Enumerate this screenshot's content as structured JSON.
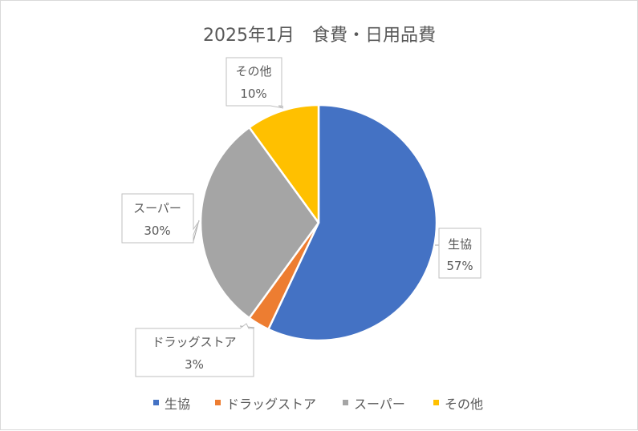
{
  "chart_data": {
    "type": "pie",
    "title": "2025年1月　食費・日用品費",
    "categories": [
      "生協",
      "ドラッグストア",
      "スーパー",
      "その他"
    ],
    "values": [
      57,
      3,
      30,
      10
    ],
    "percent_labels": [
      "57%",
      "3%",
      "30%",
      "10%"
    ],
    "colors": [
      "#4472c4",
      "#ed7d31",
      "#a5a5a5",
      "#ffc000"
    ],
    "legend_position": "bottom",
    "start_angle_deg": 0,
    "direction": "clockwise"
  }
}
